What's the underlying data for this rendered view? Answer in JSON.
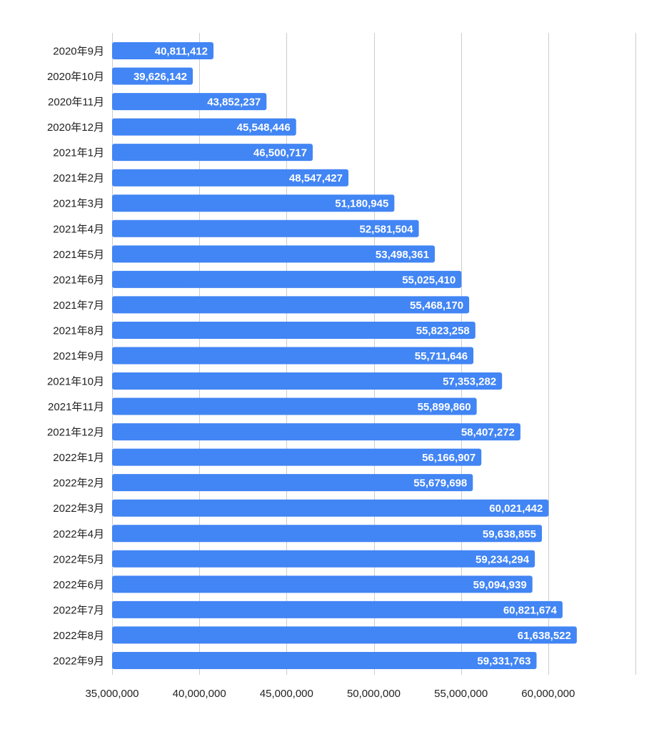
{
  "chart_data": {
    "type": "bar",
    "orientation": "horizontal",
    "title": "",
    "xlabel": "",
    "ylabel": "",
    "xlim": [
      35000000,
      65000000
    ],
    "x_ticks": [
      35000000,
      40000000,
      45000000,
      50000000,
      55000000,
      60000000,
      65000000
    ],
    "x_tick_labels": [
      "35,000,000",
      "40,000,000",
      "45,000,000",
      "50,000,000",
      "55,000,000",
      "60,000,000",
      ""
    ],
    "grid": "vertical",
    "legend": "none",
    "bar_color": "#4285f4",
    "value_label_color": "#ffffff",
    "categories": [
      "2020年9月",
      "2020年10月",
      "2020年11月",
      "2020年12月",
      "2021年1月",
      "2021年2月",
      "2021年3月",
      "2021年4月",
      "2021年5月",
      "2021年6月",
      "2021年7月",
      "2021年8月",
      "2021年9月",
      "2021年10月",
      "2021年11月",
      "2021年12月",
      "2022年1月",
      "2022年2月",
      "2022年3月",
      "2022年4月",
      "2022年5月",
      "2022年6月",
      "2022年7月",
      "2022年8月",
      "2022年9月"
    ],
    "values": [
      40811412,
      39626142,
      43852237,
      45548446,
      46500717,
      48547427,
      51180945,
      52581504,
      53498361,
      55025410,
      55468170,
      55823258,
      55711646,
      57353282,
      55899860,
      58407272,
      56166907,
      55679698,
      60021442,
      59638855,
      59234294,
      59094939,
      60821674,
      61638522,
      59331763
    ],
    "value_labels": [
      "40,811,412",
      "39,626,142",
      "43,852,237",
      "45,548,446",
      "46,500,717",
      "48,547,427",
      "51,180,945",
      "52,581,504",
      "53,498,361",
      "55,025,410",
      "55,468,170",
      "55,823,258",
      "55,711,646",
      "57,353,282",
      "55,899,860",
      "58,407,272",
      "56,166,907",
      "55,679,698",
      "60,021,442",
      "59,638,855",
      "59,234,294",
      "59,094,939",
      "60,821,674",
      "61,638,522",
      "59,331,763"
    ]
  }
}
